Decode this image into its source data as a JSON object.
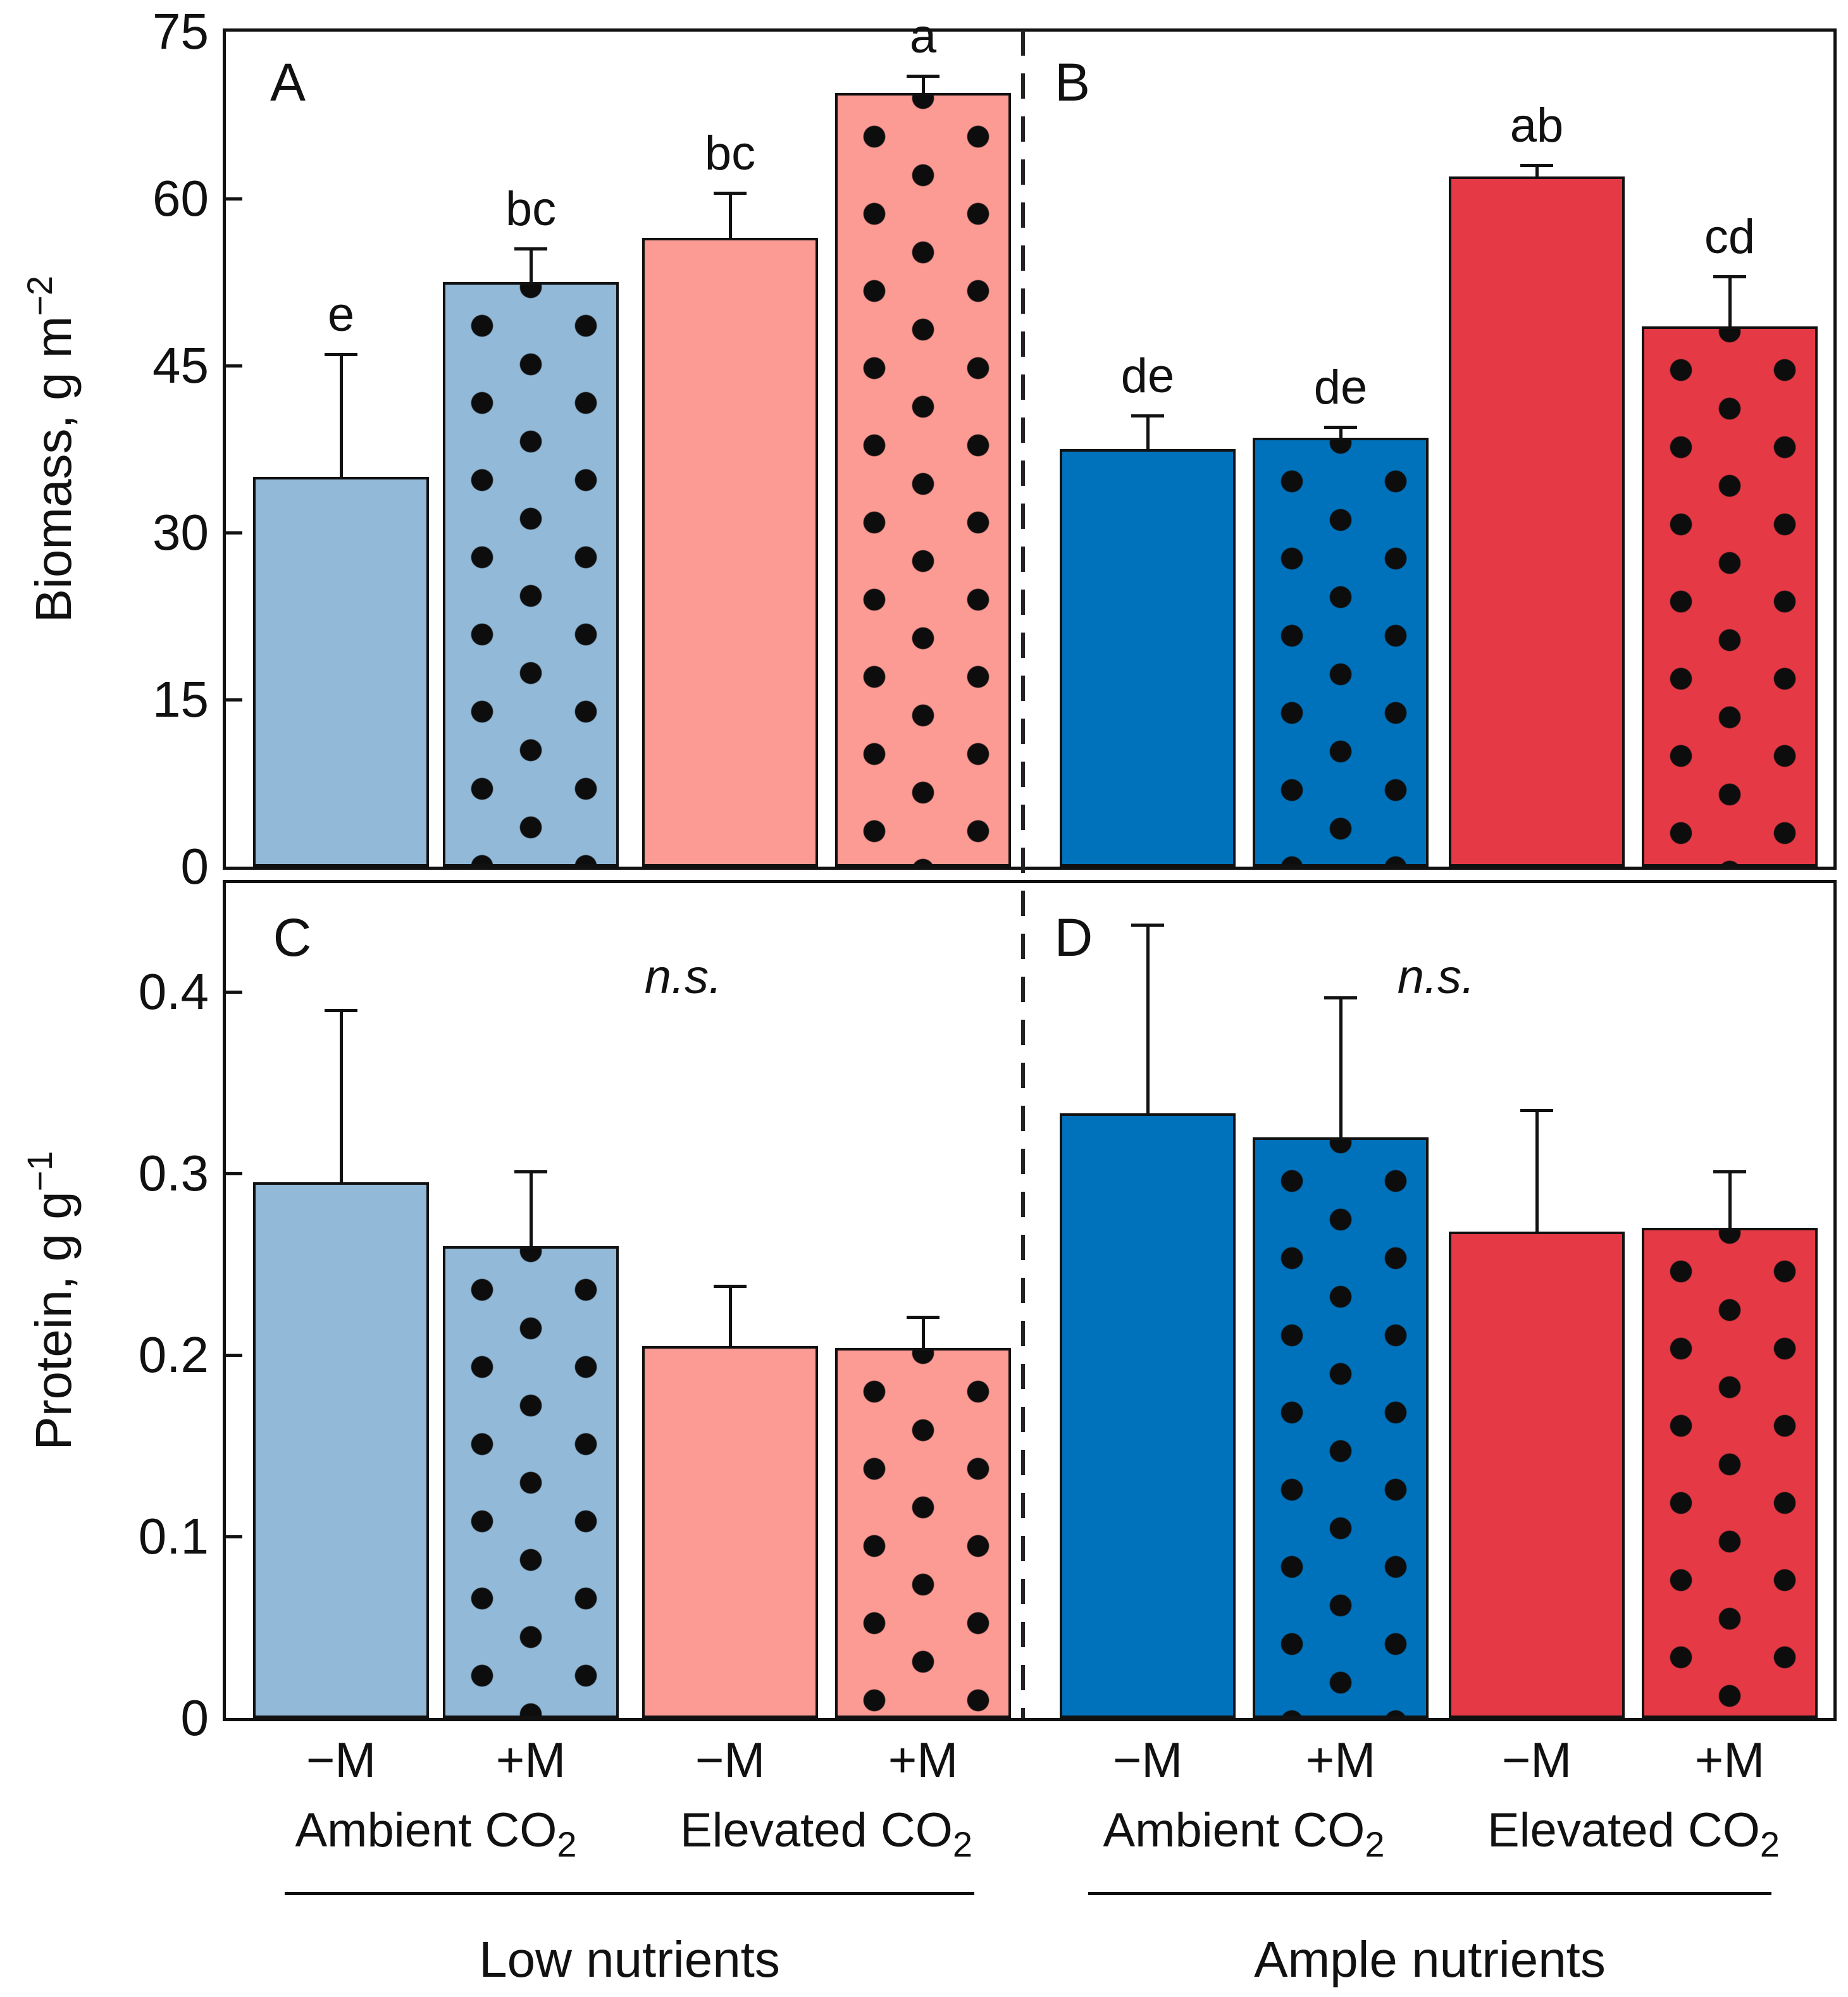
{
  "figure": {
    "background": "#ffffff",
    "frame_color": "#111111"
  },
  "colors": {
    "light_blue": "#92B9D8",
    "salmon": "#FC9A94",
    "dark_blue": "#0072BB",
    "red": "#E53A46",
    "dot": "#0d0d0d"
  },
  "axes": {
    "biomass": {
      "title_prefix": "Biomass, g m",
      "title_sup": "−2",
      "tick_labels": [
        "0",
        "15",
        "30",
        "45",
        "60",
        "75"
      ],
      "tick_values": [
        0,
        15,
        30,
        45,
        60,
        75
      ],
      "ymax_draw": 75
    },
    "protein": {
      "title_prefix": "Protein, g g",
      "title_sup": "−1",
      "tick_labels": [
        "0",
        "0.1",
        "0.2",
        "0.3",
        "0.4"
      ],
      "tick_values": [
        0,
        0.1,
        0.2,
        0.3,
        0.4
      ],
      "ymax_draw": 0.46
    }
  },
  "chart_data": [
    {
      "panel": "A",
      "type": "bar",
      "row": "top",
      "half": "left",
      "group": "Low nutrients",
      "ylabel": "Biomass, g m−2",
      "ylim": [
        0,
        75
      ],
      "categories": [
        "Ambient CO2 −M",
        "Ambient CO2 +M",
        "Elevated CO2 −M",
        "Elevated CO2 +M"
      ],
      "values": [
        35,
        52.5,
        56.5,
        69.5
      ],
      "errors_up": [
        11,
        3,
        4,
        1.5
      ],
      "sig_letters": [
        "e",
        "bc",
        "bc",
        "a"
      ],
      "styles": [
        "light_blue",
        "light_blue_dots",
        "salmon",
        "salmon_dots"
      ],
      "annotation": null
    },
    {
      "panel": "B",
      "type": "bar",
      "row": "top",
      "half": "right",
      "group": "Ample nutrients",
      "ylabel": "Biomass, g m−2",
      "ylim": [
        0,
        75
      ],
      "categories": [
        "Ambient CO2 −M",
        "Ambient CO2 +M",
        "Elevated CO2 −M",
        "Elevated CO2 +M"
      ],
      "values": [
        37.5,
        38.5,
        62,
        48.5
      ],
      "errors_up": [
        3,
        1,
        1,
        4.5
      ],
      "sig_letters": [
        "de",
        "de",
        "ab",
        "cd"
      ],
      "styles": [
        "dark_blue",
        "dark_blue_dots",
        "red",
        "red_dots"
      ],
      "annotation": null
    },
    {
      "panel": "C",
      "type": "bar",
      "row": "bottom",
      "half": "left",
      "group": "Low nutrients",
      "ylabel": "Protein, g g−1",
      "ylim": [
        0,
        0.46
      ],
      "categories": [
        "Ambient CO2 −M",
        "Ambient CO2 +M",
        "Elevated CO2 −M",
        "Elevated CO2 +M"
      ],
      "values": [
        0.295,
        0.26,
        0.205,
        0.204
      ],
      "errors_up": [
        0.095,
        0.041,
        0.033,
        0.017
      ],
      "sig_letters": null,
      "styles": [
        "light_blue",
        "light_blue_dots",
        "salmon",
        "salmon_dots"
      ],
      "annotation": "n.s."
    },
    {
      "panel": "D",
      "type": "bar",
      "row": "bottom",
      "half": "right",
      "group": "Ample nutrients",
      "ylabel": "Protein, g g−1",
      "ylim": [
        0,
        0.46
      ],
      "categories": [
        "Ambient CO2 −M",
        "Ambient CO2 +M",
        "Elevated CO2 −M",
        "Elevated CO2 +M"
      ],
      "values": [
        0.333,
        0.32,
        0.268,
        0.27
      ],
      "errors_up": [
        0.104,
        0.077,
        0.067,
        0.031
      ],
      "sig_letters": null,
      "styles": [
        "dark_blue",
        "dark_blue_dots",
        "red",
        "red_dots"
      ],
      "annotation": "n.s."
    }
  ],
  "x_labels": {
    "m_labels": [
      "−M",
      "+M",
      "−M",
      "+M",
      "−M",
      "+M",
      "−M",
      "+M"
    ],
    "co2_groups": [
      {
        "prefix": "Ambient CO",
        "sub": "2"
      },
      {
        "prefix": "Elevated CO",
        "sub": "2"
      },
      {
        "prefix": "Ambient CO",
        "sub": "2"
      },
      {
        "prefix": "Elevated CO",
        "sub": "2"
      }
    ],
    "nutrient_groups": [
      "Low nutrients",
      "Ample nutrients"
    ]
  }
}
